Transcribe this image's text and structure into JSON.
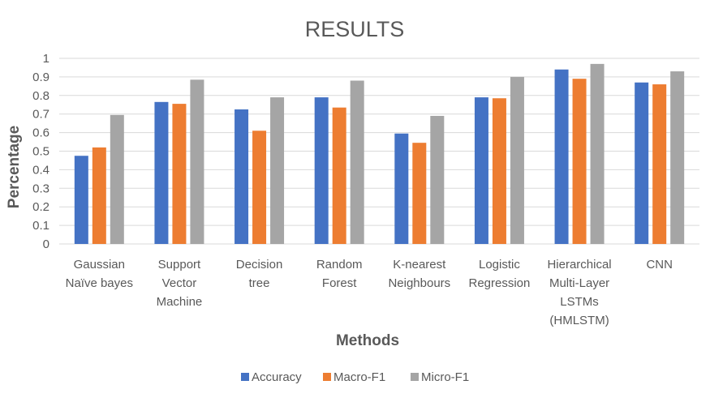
{
  "chart_data": {
    "type": "bar",
    "title": "RESULTS",
    "xlabel": "Methods",
    "ylabel": "Percentage",
    "ylim": [
      0,
      1
    ],
    "yticks": [
      "0",
      "0.1",
      "0.2",
      "0.3",
      "0.4",
      "0.5",
      "0.6",
      "0.7",
      "0.8",
      "0.9",
      "1"
    ],
    "grid": true,
    "legend_position": "bottom",
    "categories": [
      [
        "Gaussian",
        "Naïve bayes"
      ],
      [
        "Support",
        "Vector",
        "Machine"
      ],
      [
        "Decision",
        "tree"
      ],
      [
        "Random",
        "Forest"
      ],
      [
        "K-nearest",
        "Neighbours"
      ],
      [
        "Logistic",
        "Regression"
      ],
      [
        "Hierarchical",
        "Multi-Layer",
        "LSTMs",
        "(HMLSTM)"
      ],
      [
        "CNN"
      ]
    ],
    "series": [
      {
        "name": "Accuracy",
        "color": "#4472c4",
        "values": [
          0.475,
          0.765,
          0.725,
          0.79,
          0.595,
          0.79,
          0.94,
          0.87
        ]
      },
      {
        "name": "Macro-F1",
        "color": "#ed7d31",
        "values": [
          0.52,
          0.755,
          0.61,
          0.735,
          0.545,
          0.785,
          0.89,
          0.86
        ]
      },
      {
        "name": "Micro-F1",
        "color": "#a5a5a5",
        "values": [
          0.695,
          0.885,
          0.79,
          0.88,
          0.69,
          0.9,
          0.97,
          0.93
        ]
      }
    ]
  }
}
